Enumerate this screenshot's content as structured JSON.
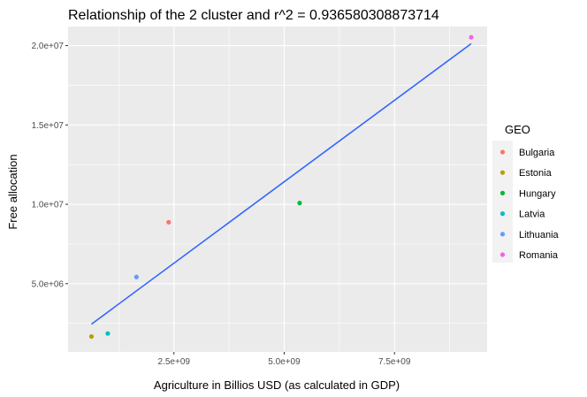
{
  "chart_data": {
    "type": "scatter",
    "title": "Relationship of the 2  cluster and r^2 =  0.936580308873714",
    "xlabel": "Agriculture in Billios USD (as calculated in GDP)",
    "ylabel": "Free allocation",
    "xlim": [
      100000000,
      9600000000
    ],
    "ylim": [
      700000,
      21200000
    ],
    "x_ticks": [
      {
        "value": 2500000000,
        "label": "2.5e+09"
      },
      {
        "value": 5000000000,
        "label": "5.0e+09"
      },
      {
        "value": 7500000000,
        "label": "7.5e+09"
      }
    ],
    "y_ticks": [
      {
        "value": 5000000,
        "label": "5.0e+06"
      },
      {
        "value": 10000000,
        "label": "1.0e+07"
      },
      {
        "value": 15000000,
        "label": "1.5e+07"
      },
      {
        "value": 20000000,
        "label": "2.0e+07"
      }
    ],
    "grid": true,
    "legend_position": "right",
    "legend_title": "GEO",
    "series": [
      {
        "name": "Bulgaria",
        "color": "#F8766D",
        "x": 2380000000,
        "y": 8870000
      },
      {
        "name": "Estonia",
        "color": "#B79F00",
        "x": 630000000,
        "y": 1670000
      },
      {
        "name": "Hungary",
        "color": "#00BA38",
        "x": 5350000000,
        "y": 10080000
      },
      {
        "name": "Latvia",
        "color": "#00BFC4",
        "x": 1000000000,
        "y": 1860000
      },
      {
        "name": "Lithuania",
        "color": "#619CFF",
        "x": 1650000000,
        "y": 5420000
      },
      {
        "name": "Romania",
        "color": "#F564E3",
        "x": 9240000000,
        "y": 20520000
      }
    ],
    "fit_line": {
      "color": "#3366FF",
      "x": [
        630000000,
        9240000000
      ],
      "y": [
        2450000,
        20120000
      ]
    }
  }
}
